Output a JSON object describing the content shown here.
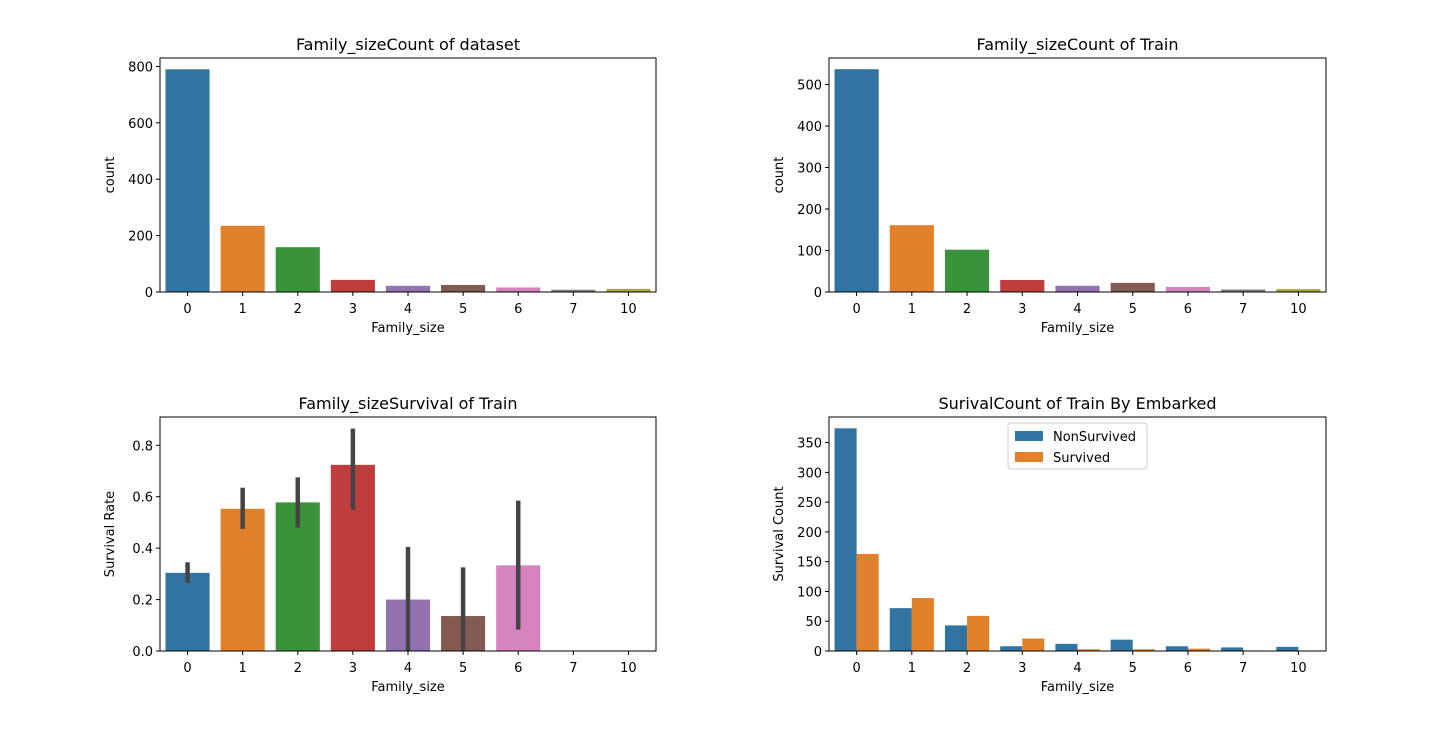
{
  "colors": [
    "#3274a1",
    "#e1812c",
    "#3a923a",
    "#c03d3e",
    "#9372b2",
    "#845b53",
    "#d684bd",
    "#7f7f7f",
    "#a9aa35"
  ],
  "chart_data": [
    {
      "type": "bar",
      "title": "Family_sizeCount of dataset",
      "xlabel": "Family_size",
      "ylabel": "count",
      "categories": [
        "0",
        "1",
        "2",
        "3",
        "4",
        "5",
        "6",
        "7",
        "10"
      ],
      "values": [
        790,
        235,
        159,
        43,
        22,
        25,
        16,
        8,
        11
      ],
      "ylim": [
        0,
        830
      ],
      "yticks": [
        0,
        200,
        400,
        600,
        800
      ],
      "grid": false
    },
    {
      "type": "bar",
      "title": "Family_sizeCount of Train",
      "xlabel": "Family_size",
      "ylabel": "count",
      "categories": [
        "0",
        "1",
        "2",
        "3",
        "4",
        "5",
        "6",
        "7",
        "10"
      ],
      "values": [
        537,
        161,
        102,
        29,
        15,
        22,
        12,
        6,
        7
      ],
      "ylim": [
        0,
        564
      ],
      "yticks": [
        0,
        100,
        200,
        300,
        400,
        500
      ],
      "grid": false
    },
    {
      "type": "bar",
      "title": "Family_sizeSurvival of Train",
      "xlabel": "Family_size",
      "ylabel": "Survival Rate",
      "categories": [
        "0",
        "1",
        "2",
        "3",
        "4",
        "5",
        "6",
        "7",
        "10"
      ],
      "values": [
        0.304,
        0.553,
        0.578,
        0.724,
        0.2,
        0.136,
        0.333,
        0,
        0
      ],
      "error_bars": [
        [
          0.265,
          0.345
        ],
        [
          0.475,
          0.635
        ],
        [
          0.48,
          0.675
        ],
        [
          0.55,
          0.865
        ],
        [
          0,
          0.405
        ],
        [
          0,
          0.325
        ],
        [
          0.083,
          0.585
        ],
        null,
        null
      ],
      "ylim": [
        0,
        0.91
      ],
      "yticks": [
        "0.0",
        "0.2",
        "0.4",
        "0.6",
        "0.8"
      ],
      "grid": false
    },
    {
      "type": "bar",
      "title": "SurivalCount of Train By Embarked",
      "xlabel": "Family_size",
      "ylabel": "Survival Count",
      "categories": [
        "0",
        "1",
        "2",
        "3",
        "4",
        "5",
        "6",
        "7",
        "10"
      ],
      "series": [
        {
          "name": "NonSurvived",
          "values": [
            374,
            72,
            43,
            8,
            12,
            19,
            8,
            6,
            7
          ]
        },
        {
          "name": "Survived",
          "values": [
            163,
            89,
            59,
            21,
            3,
            3,
            4,
            0,
            0
          ]
        }
      ],
      "ylim": [
        0,
        393
      ],
      "yticks": [
        0,
        50,
        100,
        150,
        200,
        250,
        300,
        350
      ],
      "legend": "top-center",
      "grid": false
    }
  ]
}
